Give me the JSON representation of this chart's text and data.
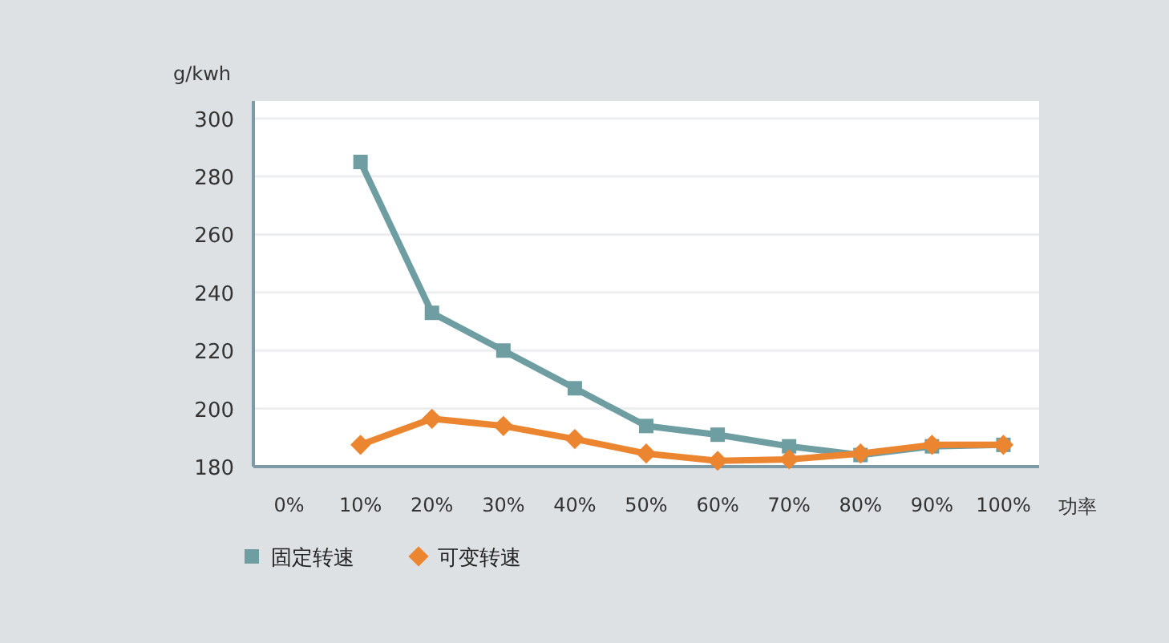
{
  "chart_data": {
    "type": "line",
    "ylabel": "g/kwh",
    "xlabel": "功率",
    "categories": [
      "0%",
      "10%",
      "20%",
      "30%",
      "40%",
      "50%",
      "60%",
      "70%",
      "80%",
      "90%",
      "100%"
    ],
    "series": [
      {
        "name": "固定转速",
        "color": "#6e9ea2",
        "marker": "square",
        "values": [
          null,
          285,
          233,
          220,
          207,
          194,
          191,
          187,
          184,
          187,
          187.5
        ]
      },
      {
        "name": "可变转速",
        "color": "#ec8530",
        "marker": "diamond",
        "values": [
          null,
          187.5,
          196.5,
          194,
          189.5,
          184.5,
          182,
          182.5,
          184.5,
          187.5,
          187.5
        ]
      }
    ],
    "ylim": [
      180,
      306
    ],
    "yticks": [
      180,
      200,
      220,
      240,
      260,
      280,
      300
    ],
    "grid": "y",
    "legend": "bottom left"
  }
}
